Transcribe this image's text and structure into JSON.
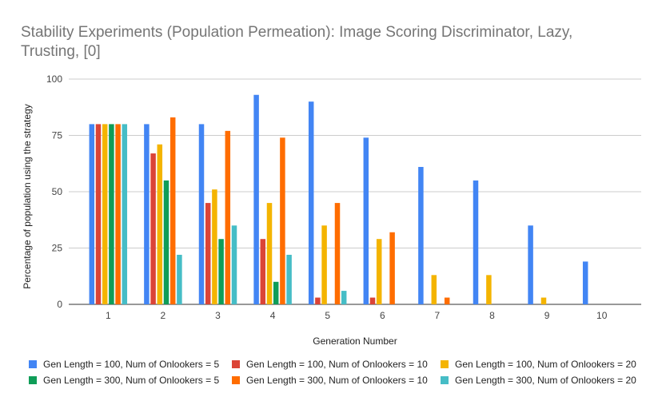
{
  "chart_data": {
    "type": "bar",
    "title": "Stability Experiments (Population Permeation):  Image Scoring Discriminator, Lazy, Trusting, [0]",
    "title_lines": [
      "Stability Experiments (Population Permeation):  Image Scoring Discriminator, Lazy,",
      "Trusting, [0]"
    ],
    "xlabel": "Generation Number",
    "ylabel": "Percentage of population using the strategy",
    "ylim": [
      0,
      100
    ],
    "yticks": [
      0,
      25,
      50,
      75,
      100
    ],
    "grid": true,
    "legend_position": "bottom",
    "categories": [
      "1",
      "2",
      "3",
      "4",
      "5",
      "6",
      "7",
      "8",
      "9",
      "10"
    ],
    "series": [
      {
        "name": "Gen Length = 100, Num of Onlookers = 5",
        "color": "#4285f4",
        "values": [
          80,
          80,
          80,
          93,
          90,
          74,
          61,
          55,
          35,
          19
        ]
      },
      {
        "name": "Gen Length = 100, Num of Onlookers = 10",
        "color": "#db4437",
        "values": [
          80,
          67,
          45,
          29,
          3,
          3,
          0,
          0,
          0,
          0
        ]
      },
      {
        "name": "Gen Length = 100, Num of Onlookers = 20",
        "color": "#f4b400",
        "values": [
          80,
          71,
          51,
          45,
          35,
          29,
          13,
          13,
          3,
          0
        ]
      },
      {
        "name": "Gen Length = 300, Num of Onlookers = 5",
        "color": "#0f9d58",
        "values": [
          80,
          55,
          29,
          10,
          0,
          0,
          0,
          0,
          0,
          0
        ]
      },
      {
        "name": "Gen Length = 300, Num of Onlookers = 10",
        "color": "#ff6d00",
        "values": [
          80,
          83,
          77,
          74,
          45,
          32,
          3,
          0,
          0,
          0
        ]
      },
      {
        "name": "Gen Length = 300, Num of Onlookers = 20",
        "color": "#46bdc6",
        "values": [
          80,
          22,
          35,
          22,
          6,
          0,
          0,
          0,
          0,
          0
        ]
      }
    ]
  }
}
